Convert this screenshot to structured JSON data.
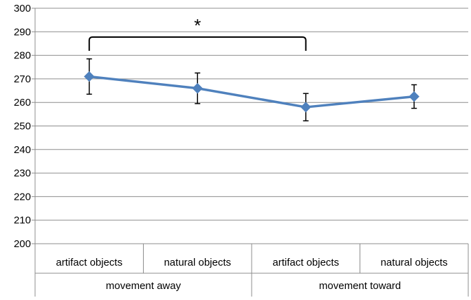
{
  "chart_data": {
    "type": "line",
    "title": "",
    "xlabel": "",
    "ylabel": "",
    "ylim": [
      200,
      300
    ],
    "yticks": [
      200,
      210,
      220,
      230,
      240,
      250,
      260,
      270,
      280,
      290,
      300
    ],
    "grid": "horizontal",
    "legend": "none",
    "categories": [
      "artifact objects",
      "natural objects",
      "artifact objects",
      "natural objects"
    ],
    "groups": [
      {
        "label": "movement away",
        "categories": [
          0,
          1
        ]
      },
      {
        "label": "movement toward",
        "categories": [
          2,
          3
        ]
      }
    ],
    "series": [
      {
        "values": [
          271,
          266,
          258,
          262.5
        ],
        "error": [
          7.5,
          6.5,
          5.8,
          5
        ],
        "color": "#4f81bd",
        "marker": "diamond"
      }
    ],
    "annotations": [
      {
        "type": "bracket",
        "from": 0,
        "to": 2,
        "label": "*"
      }
    ]
  }
}
